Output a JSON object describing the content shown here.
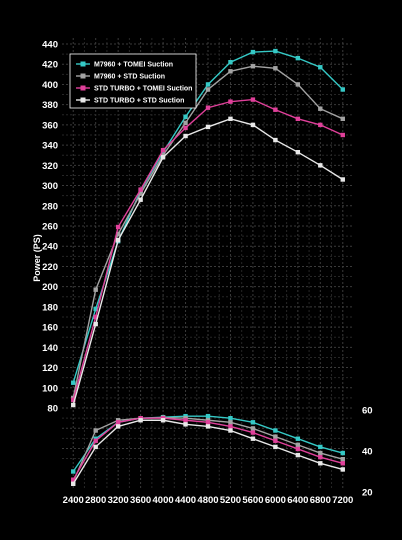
{
  "chart_data": {
    "type": "line",
    "title": "",
    "xlabel": "",
    "ylabel": "Power (PS)",
    "x": [
      2400,
      2800,
      3200,
      3600,
      4000,
      4400,
      4800,
      5200,
      5600,
      6000,
      6400,
      6800,
      7200
    ],
    "x_ticks": [
      "2400",
      "2800",
      "3200",
      "3600",
      "4000",
      "4400",
      "4800",
      "5200",
      "5600",
      "6000",
      "6400",
      "6800",
      "7200"
    ],
    "xlim": [
      2200,
      7400
    ],
    "ylim": [
      20,
      445
    ],
    "y_ticks": [
      "80",
      "100",
      "120",
      "140",
      "160",
      "180",
      "200",
      "220",
      "240",
      "260",
      "280",
      "300",
      "320",
      "340",
      "360",
      "380",
      "400",
      "420",
      "440"
    ],
    "y2_ticks": [
      "20",
      "40",
      "60"
    ],
    "y2lim": [
      20,
      100
    ],
    "grid": true,
    "legend_position": "top-left",
    "series": [
      {
        "name": "M7960 + TOMEI Suction",
        "color": "#35c9c6",
        "power": [
          105,
          178,
          245,
          295,
          333,
          368,
          400,
          422,
          432,
          433,
          426,
          417,
          395
        ],
        "torque": [
          30,
          46,
          54,
          56,
          56.5,
          57,
          57,
          56,
          54,
          50,
          46,
          42,
          39
        ]
      },
      {
        "name": "M7960 + STD Suction",
        "color": "#a3a3a3",
        "power": [
          90,
          197,
          252,
          292,
          330,
          362,
          395,
          413,
          418,
          416,
          400,
          376,
          366
        ],
        "torque": [
          25,
          50,
          55,
          56,
          56.3,
          56,
          55,
          54,
          51,
          47,
          43,
          39,
          36
        ]
      },
      {
        "name": "STD TURBO + TOMEI Suction",
        "color": "#e0409a",
        "power": [
          88,
          170,
          259,
          296,
          335,
          357,
          377,
          383,
          385,
          375,
          366,
          360,
          350
        ],
        "torque": [
          26,
          45,
          54,
          56,
          56,
          55,
          54,
          52,
          49,
          45,
          41,
          37,
          34
        ]
      },
      {
        "name": "STD TURBO + STD Suction",
        "color": "#e8e8e8",
        "power": [
          83,
          163,
          246,
          286,
          328,
          349,
          358,
          366,
          360,
          345,
          333,
          320,
          306
        ],
        "torque": [
          24,
          42,
          52,
          55,
          55,
          53,
          52,
          50,
          46,
          42,
          38,
          34,
          31
        ]
      }
    ]
  }
}
